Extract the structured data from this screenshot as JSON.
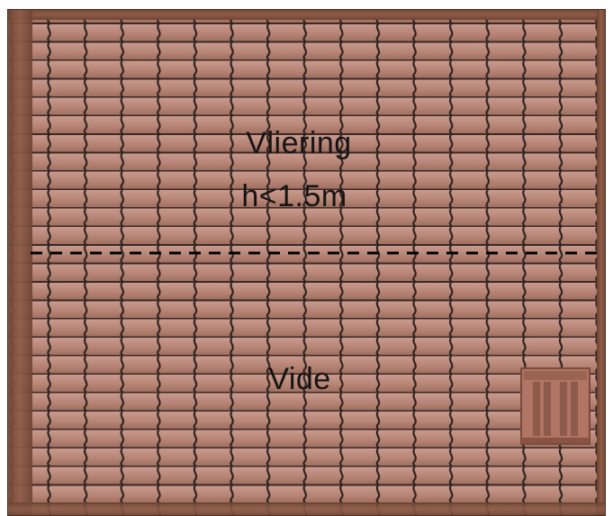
{
  "labels": {
    "upper_zone": "Vliering",
    "upper_zone_height": "h<1.5m",
    "lower_zone": "Vide"
  },
  "colors": {
    "tile": "#b68474",
    "tile_light": "#c6958a",
    "tile_seam": "#3a2a26",
    "frame": "#8a5a46",
    "frame_dark": "#6e4433",
    "dashed_line": "#000000"
  },
  "icons": {
    "roof_window": "roof-window-icon"
  }
}
